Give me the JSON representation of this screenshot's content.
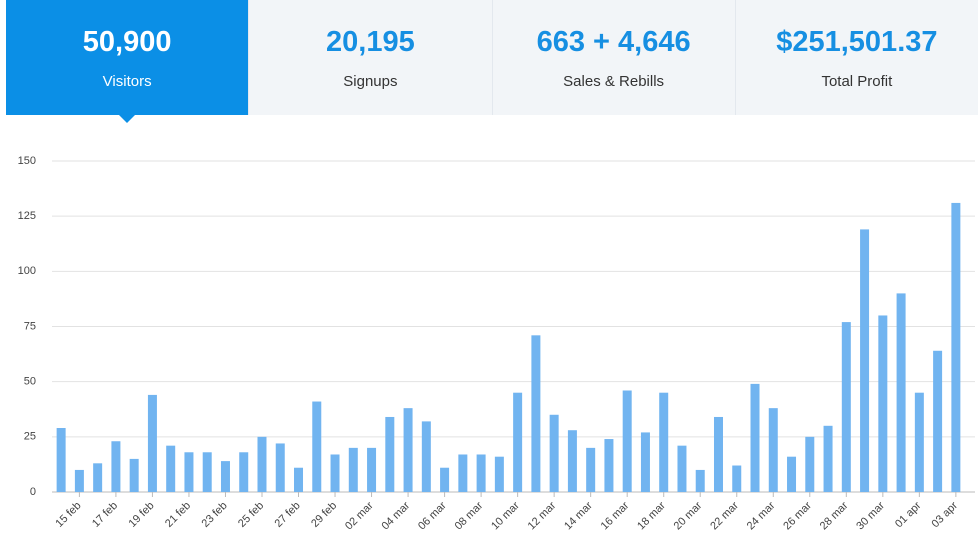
{
  "stats": [
    {
      "value": "50,900",
      "label": "Visitors"
    },
    {
      "value": "20,195",
      "label": "Signups"
    },
    {
      "value": "663 + 4,646",
      "label": "Sales & Rebills"
    },
    {
      "value": "$251,501.37",
      "label": "Total Profit"
    }
  ],
  "chart_data": {
    "type": "bar",
    "color": "#71b4f0",
    "grid": true,
    "categories": [
      null,
      "15 feb",
      null,
      "17 feb",
      null,
      "19 feb",
      null,
      "21 feb",
      null,
      "23 feb",
      null,
      "25 feb",
      null,
      "27 feb",
      null,
      "29 feb",
      null,
      "02 mar",
      null,
      "04 mar",
      null,
      "06 mar",
      null,
      "08 mar",
      null,
      "10 mar",
      null,
      "12 mar",
      null,
      "14 mar",
      null,
      "16 mar",
      null,
      "18 mar",
      null,
      "20 mar",
      null,
      "22 mar",
      null,
      "24 mar",
      null,
      "26 mar",
      null,
      "28 mar",
      null,
      "30 mar",
      null,
      "01 apr",
      null,
      "03 apr"
    ],
    "values": [
      29,
      10,
      13,
      23,
      15,
      44,
      21,
      18,
      18,
      14,
      18,
      25,
      22,
      11,
      41,
      17,
      20,
      20,
      34,
      38,
      32,
      11,
      17,
      17,
      16,
      45,
      71,
      35,
      28,
      20,
      24,
      46,
      27,
      45,
      21,
      10,
      34,
      12,
      49,
      38,
      16,
      25,
      30,
      77,
      119,
      80,
      90,
      45,
      64,
      131
    ],
    "ylim": [
      0,
      150
    ],
    "yticks": [
      0,
      25,
      50,
      75,
      100,
      125,
      150
    ]
  }
}
